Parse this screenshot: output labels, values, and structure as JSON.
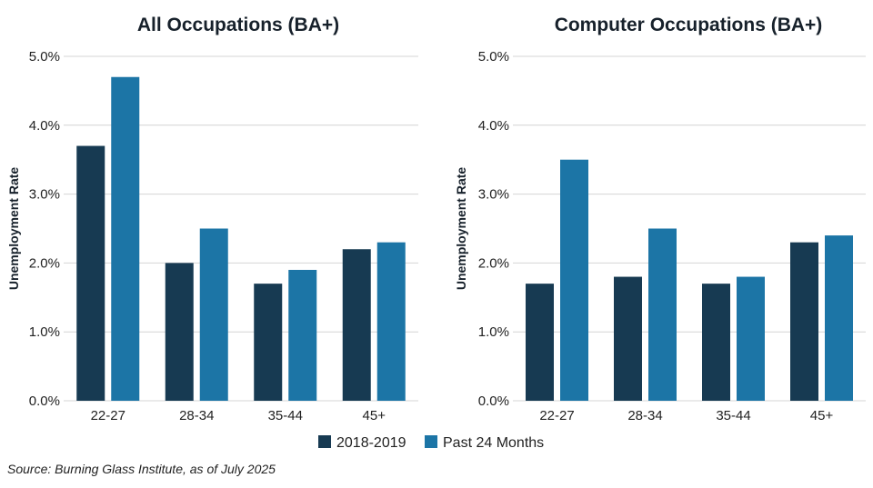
{
  "chart_data": [
    {
      "type": "bar",
      "title": "All Occupations (BA+)",
      "ylabel": "Unemployment Rate",
      "xlabel": "",
      "ylim": [
        0,
        5
      ],
      "yticks": [
        "0.0%",
        "1.0%",
        "2.0%",
        "3.0%",
        "4.0%",
        "5.0%"
      ],
      "categories": [
        "22-27",
        "28-34",
        "35-44",
        "45+"
      ],
      "series": [
        {
          "name": "2018-2019",
          "values": [
            3.7,
            2.0,
            1.7,
            2.2
          ]
        },
        {
          "name": "Past 24 Months",
          "values": [
            4.7,
            2.5,
            1.9,
            2.3
          ]
        }
      ]
    },
    {
      "type": "bar",
      "title": "Computer Occupations (BA+)",
      "ylabel": "Unemployment Rate",
      "xlabel": "",
      "ylim": [
        0,
        5
      ],
      "yticks": [
        "0.0%",
        "1.0%",
        "2.0%",
        "3.0%",
        "4.0%",
        "5.0%"
      ],
      "categories": [
        "22-27",
        "28-34",
        "35-44",
        "45+"
      ],
      "series": [
        {
          "name": "2018-2019",
          "values": [
            1.7,
            1.8,
            1.7,
            2.3
          ]
        },
        {
          "name": "Past 24 Months",
          "values": [
            3.5,
            2.5,
            1.8,
            2.4
          ]
        }
      ]
    }
  ],
  "legend": [
    {
      "label": "2018-2019",
      "color": "#173a52"
    },
    {
      "label": "Past 24 Months",
      "color": "#1c75a6"
    }
  ],
  "source": "Source: Burning Glass Institute, as of July 2025"
}
